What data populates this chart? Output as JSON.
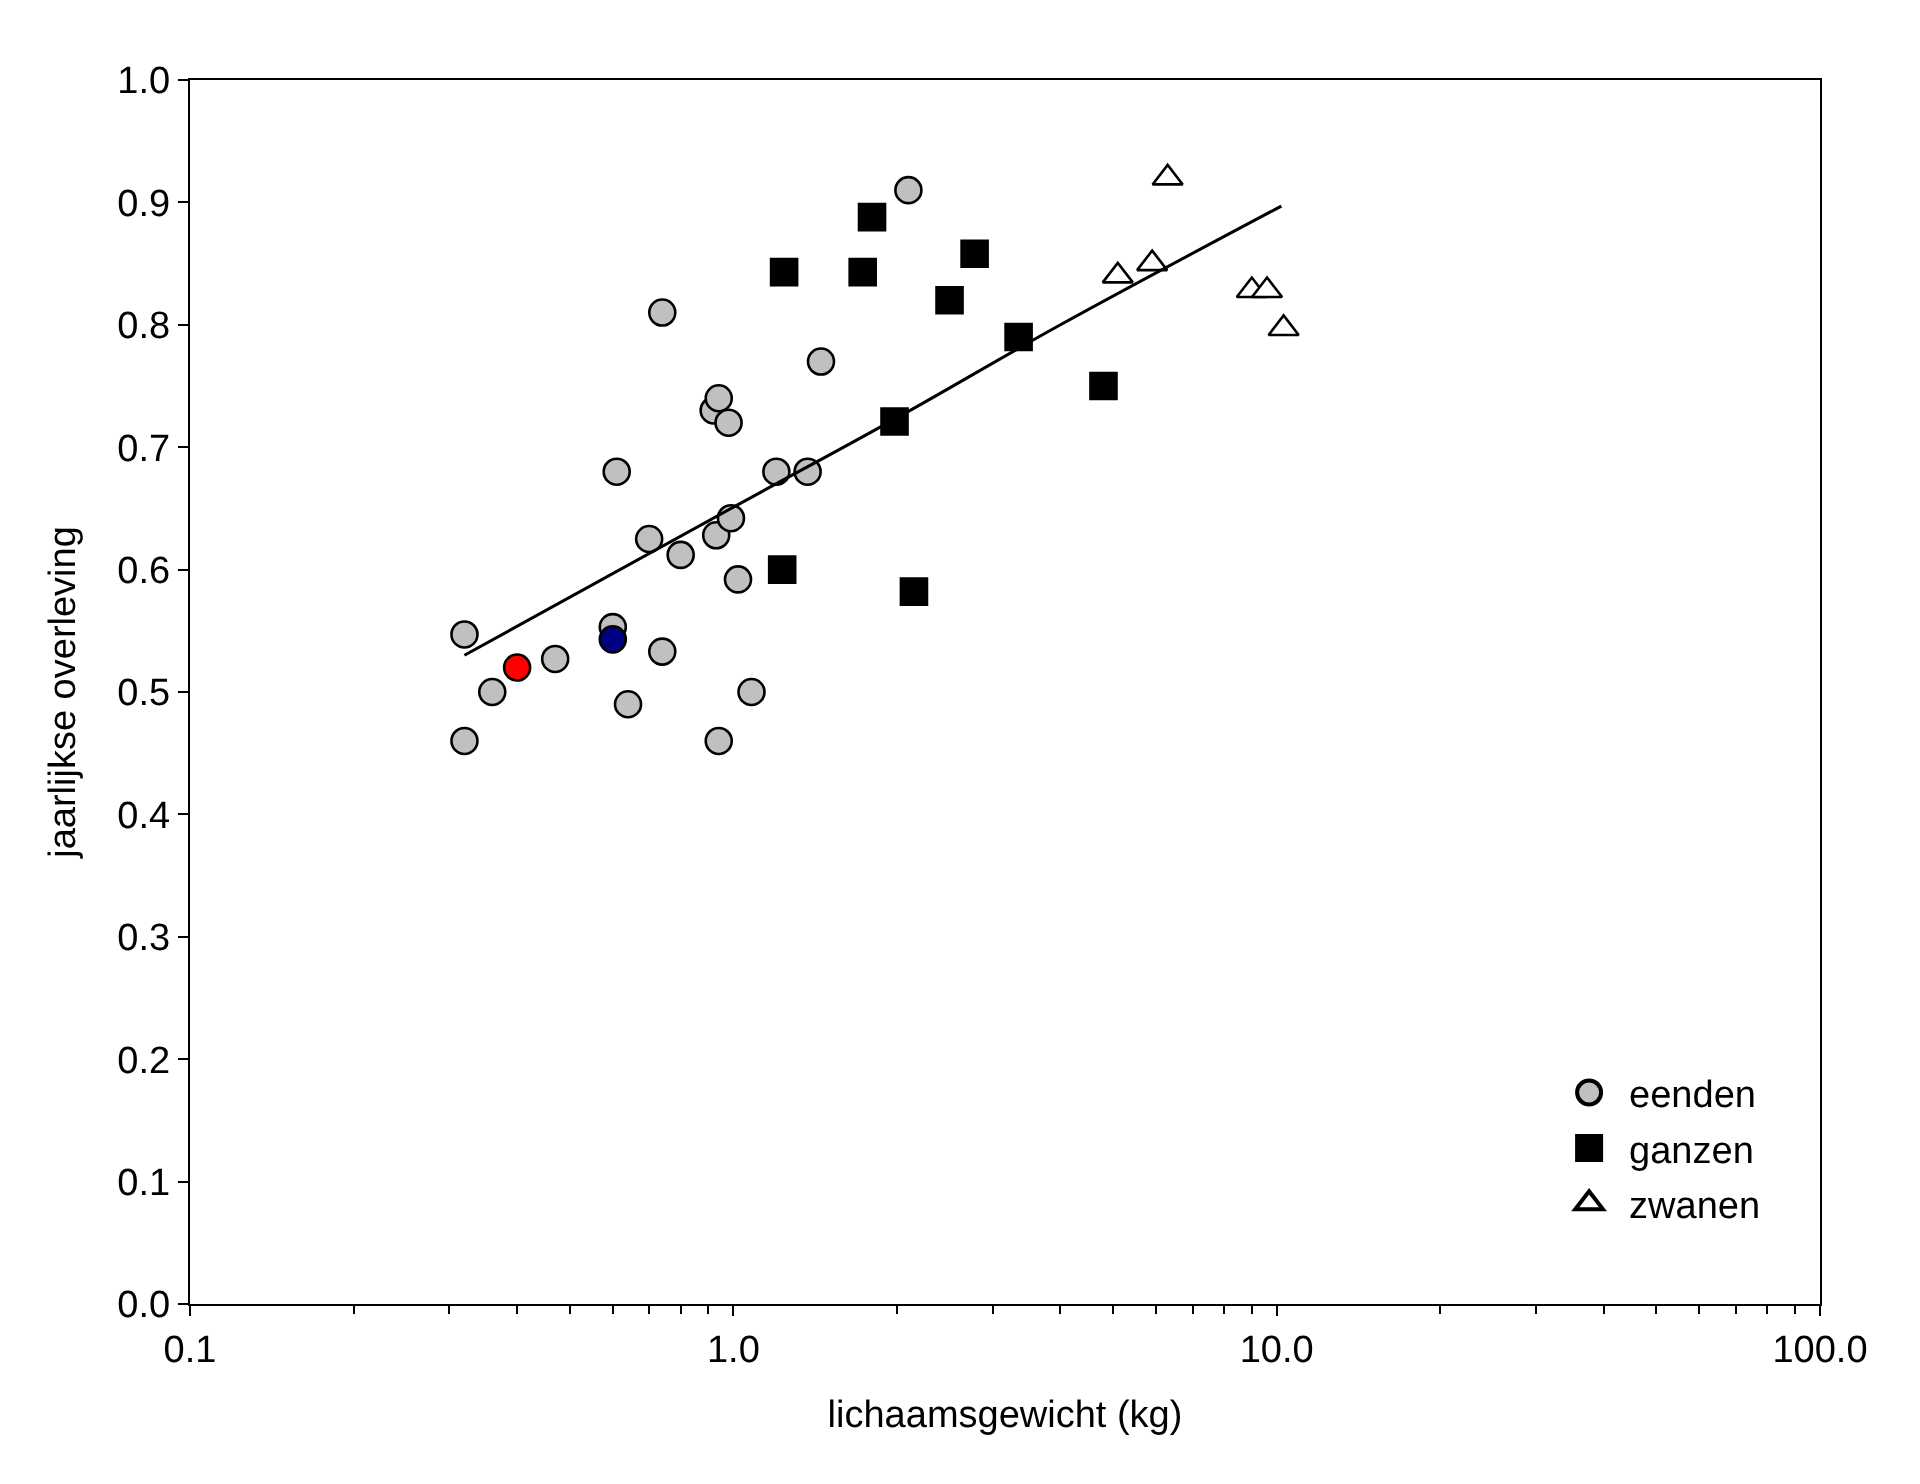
{
  "chart_data": {
    "type": "scatter",
    "xlabel": "lichaamsgewicht (kg)",
    "ylabel": "jaarlijkse overleving",
    "log": "x",
    "legend": "bottom right",
    "xlim": [
      0.1,
      100
    ],
    "xticks": [
      {
        "value": 0.1,
        "label": "0.1"
      },
      {
        "value": 1,
        "label": "1.0"
      },
      {
        "value": 10,
        "label": "10.0"
      },
      {
        "value": 100,
        "label": "100.0"
      }
    ],
    "ylim": [
      0,
      1
    ],
    "yticks": [
      {
        "value": 0,
        "label": "0.0"
      },
      {
        "value": 0.1,
        "label": "0.1"
      },
      {
        "value": 0.2,
        "label": "0.2"
      },
      {
        "value": 0.3,
        "label": "0.3"
      },
      {
        "value": 0.4,
        "label": "0.4"
      },
      {
        "value": 0.5,
        "label": "0.5"
      },
      {
        "value": 0.6,
        "label": "0.6"
      },
      {
        "value": 0.7,
        "label": "0.7"
      },
      {
        "value": 0.8,
        "label": "0.8"
      },
      {
        "value": 0.9,
        "label": "0.9"
      },
      {
        "value": 1,
        "label": "1.0"
      }
    ],
    "series": [
      {
        "name": "eenden",
        "color": "#c0c0c0",
        "marker": "circle",
        "x": [
          0.32,
          0.32,
          0.36,
          0.47,
          0.6,
          0.61,
          0.64,
          0.7,
          0.74,
          0.74,
          0.8,
          0.92,
          0.94,
          0.93,
          0.94,
          0.98,
          0.99,
          1.02,
          1.08,
          1.2,
          1.37,
          1.45,
          2.1
        ],
        "values": [
          0.547,
          0.46,
          0.5,
          0.527,
          0.553,
          0.68,
          0.49,
          0.625,
          0.81,
          0.533,
          0.612,
          0.73,
          0.74,
          0.628,
          0.46,
          0.72,
          0.642,
          0.592,
          0.5,
          0.68,
          0.68,
          0.77,
          0.91
        ]
      },
      {
        "color": "#ff0000",
        "marker": "circle",
        "x": [
          0.4
        ],
        "values": [
          0.52
        ]
      },
      {
        "color": "#000080",
        "marker": "circle",
        "x": [
          0.6
        ],
        "values": [
          0.543
        ]
      },
      {
        "name": "ganzen",
        "color": "#000000",
        "marker": "square",
        "x": [
          1.24,
          1.23,
          1.73,
          1.8,
          1.98,
          2.15,
          2.5,
          2.78,
          3.35,
          4.8
        ],
        "values": [
          0.843,
          0.6,
          0.843,
          0.888,
          0.721,
          0.582,
          0.82,
          0.858,
          0.79,
          0.75
        ]
      },
      {
        "name": "zwanen",
        "color": "#ffffff",
        "marker": "triangle",
        "x": [
          5.1,
          5.9,
          6.3,
          9.0,
          9.6,
          10.3
        ],
        "values": [
          0.84,
          0.85,
          0.92,
          0.828,
          0.828,
          0.797
        ]
      },
      {
        "type": "line",
        "color": "#000000",
        "marker": "none",
        "x": [
          0.32,
          1.0,
          2.0,
          4.0,
          10.2
        ],
        "values": [
          0.53,
          0.651,
          0.724,
          0.8,
          0.897
        ]
      }
    ]
  }
}
